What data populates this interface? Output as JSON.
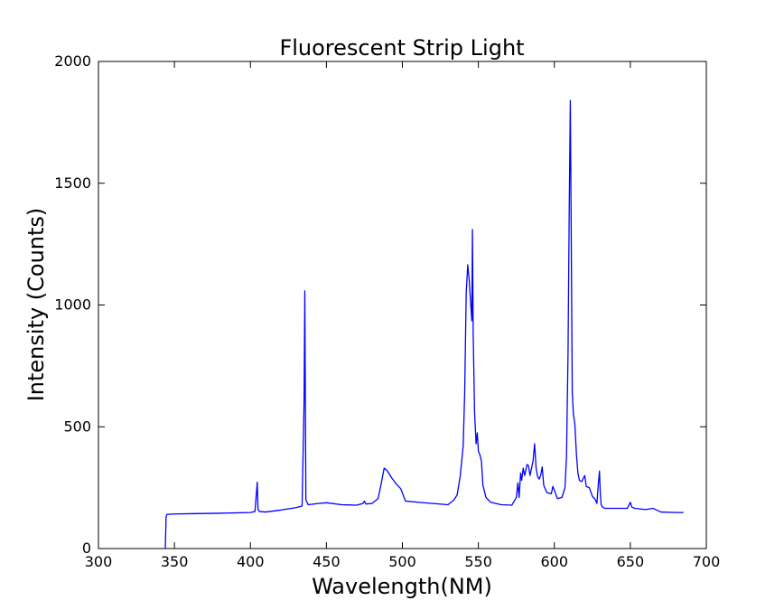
{
  "chart_data": {
    "type": "line",
    "title": "Fluorescent Strip Light",
    "xlabel": "Wavelength(NM)",
    "ylabel": "Intensity (Counts)",
    "xlim": [
      300,
      700
    ],
    "ylim": [
      0,
      2000
    ],
    "xticks": [
      "300",
      "350",
      "400",
      "450",
      "500",
      "550",
      "600",
      "650",
      "700"
    ],
    "yticks": [
      "0",
      "500",
      "1000",
      "1500",
      "2000"
    ],
    "grid": false,
    "series": [
      {
        "color": "#0000ff",
        "x": [
          344,
          344.5,
          345,
          350,
          360,
          380,
          400,
          403,
          404.5,
          405,
          406,
          410,
          420,
          430,
          434,
          435.3,
          435.8,
          436.5,
          438,
          445,
          450,
          460,
          470,
          474,
          475,
          476,
          480,
          484,
          486,
          488,
          490,
          493,
          496,
          499,
          502,
          510,
          520,
          530,
          534,
          536,
          538,
          540,
          541,
          542,
          543,
          544,
          545,
          545.7,
          546.1,
          546.6,
          547.5,
          548.5,
          549.3,
          550,
          551,
          552,
          553,
          555,
          558,
          565,
          572,
          575,
          576,
          576.8,
          577.8,
          578.5,
          579.5,
          580.5,
          582,
          583,
          584,
          585,
          586,
          587,
          588,
          589,
          590,
          591,
          592,
          593,
          595,
          598,
          599,
          600,
          602,
          605,
          607,
          608,
          609,
          609.8,
          610.5,
          611.2,
          611.8,
          612.5,
          613.5,
          614.5,
          615.5,
          616.5,
          618,
          620,
          621,
          623,
          625,
          627,
          628,
          629,
          629.7,
          630.2,
          630.8,
          631.5,
          633,
          640,
          648,
          650,
          651,
          653,
          660,
          665,
          670,
          680,
          685
        ],
        "y": [
          0,
          130,
          140,
          142,
          143,
          145,
          148,
          152,
          272,
          160,
          152,
          150,
          158,
          168,
          175,
          600,
          1058,
          200,
          180,
          185,
          188,
          180,
          178,
          185,
          195,
          183,
          185,
          205,
          265,
          330,
          320,
          290,
          265,
          245,
          195,
          190,
          185,
          180,
          200,
          220,
          295,
          420,
          640,
          1050,
          1165,
          1100,
          1000,
          935,
          1310,
          880,
          560,
          430,
          475,
          400,
          385,
          360,
          260,
          210,
          190,
          180,
          178,
          210,
          270,
          210,
          310,
          280,
          330,
          300,
          345,
          340,
          300,
          330,
          360,
          430,
          330,
          295,
          285,
          300,
          335,
          260,
          230,
          225,
          255,
          240,
          205,
          210,
          250,
          380,
          800,
          1400,
          1840,
          1200,
          640,
          555,
          510,
          390,
          310,
          280,
          275,
          300,
          255,
          250,
          215,
          200,
          185,
          270,
          318,
          230,
          180,
          172,
          165,
          165,
          165,
          190,
          170,
          165,
          160,
          165,
          150,
          148,
          148
        ]
      }
    ]
  }
}
